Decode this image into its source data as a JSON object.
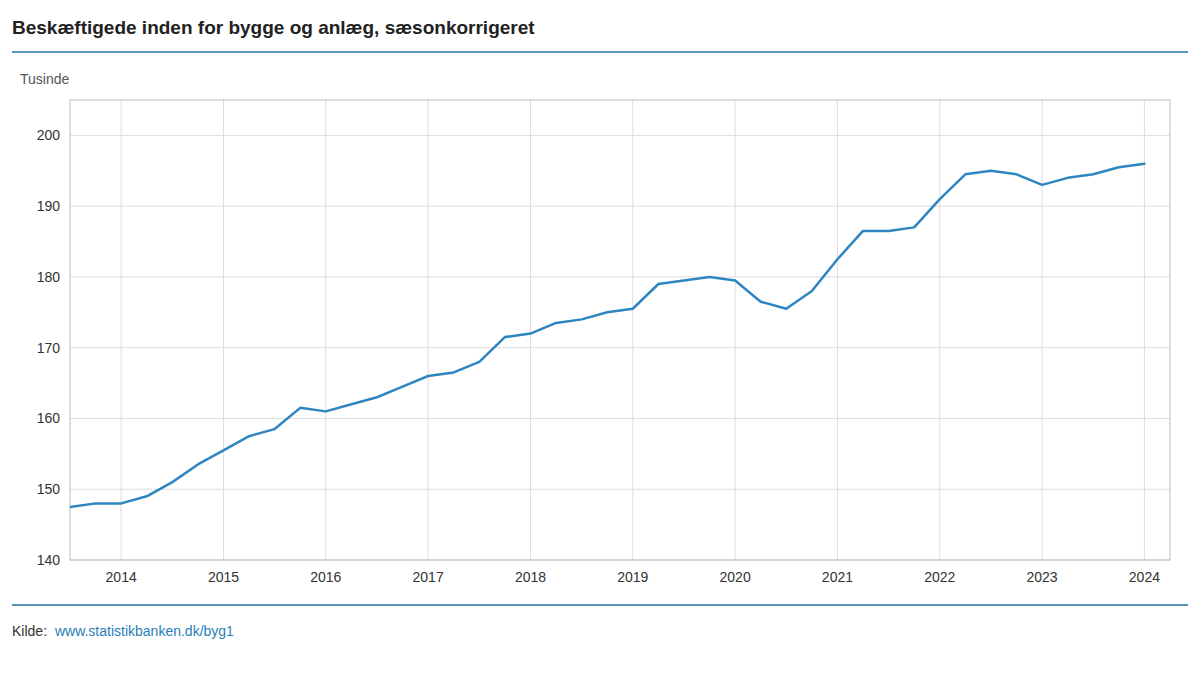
{
  "chart_data": {
    "type": "line",
    "title": "Beskæftigede inden for bygge og anlæg, sæsonkorrigeret",
    "y_label": "Tusinde",
    "source": "Kilde: ",
    "source_link": "www.statistikbanken.dk/byg1",
    "color": "#2E86C1",
    "grid": true,
    "xlim": [
      2013.5,
      2024.25
    ],
    "xticks": [
      2014,
      2015,
      2016,
      2017,
      2018,
      2019,
      2020,
      2021,
      2022,
      2023,
      2024
    ],
    "ylim": [
      140,
      205
    ],
    "yticks": [
      140,
      150,
      160,
      170,
      180,
      190,
      200
    ],
    "x": [
      2013.5,
      2013.75,
      2014.0,
      2014.25,
      2014.5,
      2014.75,
      2015.0,
      2015.25,
      2015.5,
      2015.75,
      2016.0,
      2016.25,
      2016.5,
      2016.75,
      2017.0,
      2017.25,
      2017.5,
      2017.75,
      2018.0,
      2018.25,
      2018.5,
      2018.75,
      2019.0,
      2019.25,
      2019.5,
      2019.75,
      2020.0,
      2020.25,
      2020.5,
      2020.75,
      2021.0,
      2021.25,
      2021.5,
      2021.75,
      2022.0,
      2022.25,
      2022.5,
      2022.75,
      2023.0,
      2023.25,
      2023.5,
      2023.75,
      2024.0
    ],
    "values": [
      147.5,
      148.0,
      148.0,
      149.0,
      151.0,
      153.5,
      155.5,
      157.5,
      158.5,
      161.5,
      161.0,
      162.0,
      163.0,
      164.5,
      166.0,
      166.5,
      168.0,
      171.5,
      172.0,
      173.5,
      174.0,
      175.0,
      175.5,
      179.0,
      179.5,
      180.0,
      179.5,
      176.5,
      175.5,
      178.0,
      182.5,
      186.5,
      186.5,
      187.0,
      191.0,
      194.5,
      195.0,
      194.5,
      193.0,
      194.0,
      194.5,
      195.5,
      196.0
    ]
  }
}
